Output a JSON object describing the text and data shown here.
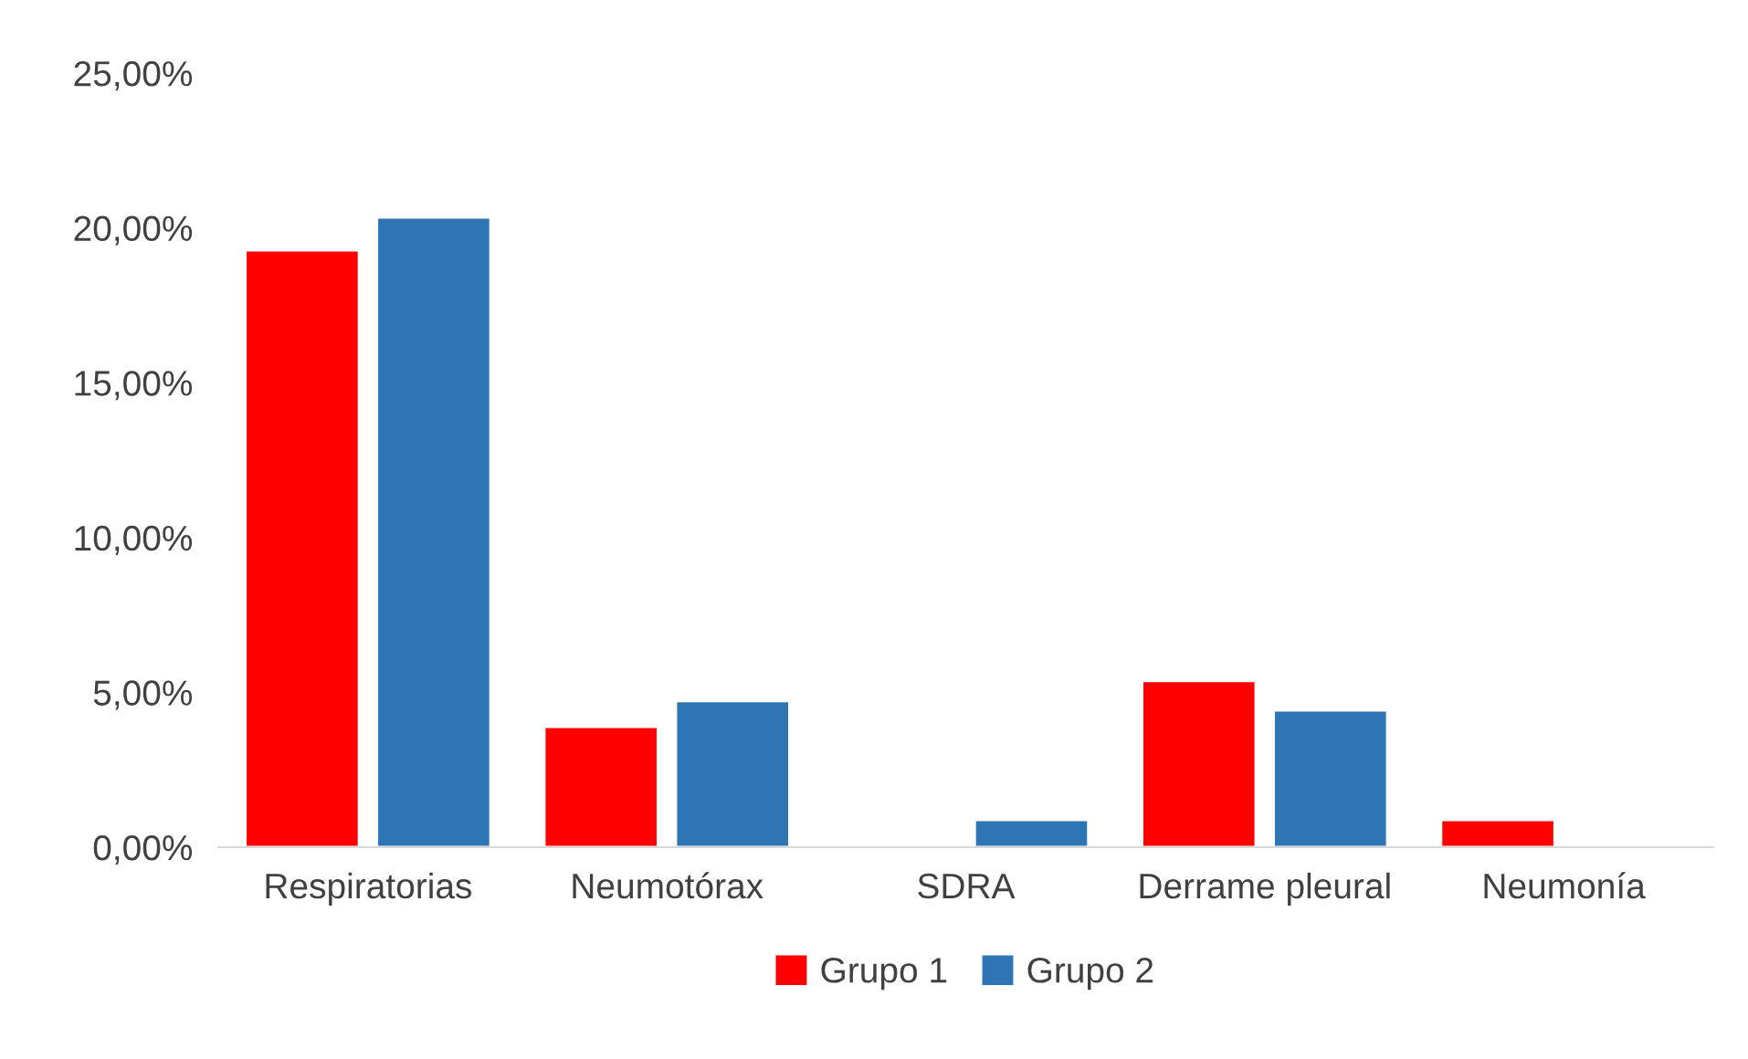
{
  "chart_data": {
    "type": "bar",
    "categories": [
      "Respiratorias",
      "Neumotórax",
      "SDRA",
      "Derrame pleural",
      "Neumonía"
    ],
    "series": [
      {
        "name": "Grupo 1",
        "color": "#ff0000",
        "values": [
          19.28,
          3.89,
          null,
          5.37,
          0.88
        ]
      },
      {
        "name": "Grupo 2",
        "color": "#2e75b6",
        "values": [
          20.34,
          4.72,
          0.88,
          4.42,
          null
        ]
      }
    ],
    "ylim": [
      0,
      25
    ],
    "yticks": [
      {
        "value": 0,
        "label": "0,00%"
      },
      {
        "value": 5,
        "label": "5,00%"
      },
      {
        "value": 10,
        "label": "10,00%"
      },
      {
        "value": 15,
        "label": "15,00%"
      },
      {
        "value": 20,
        "label": "20,00%"
      },
      {
        "value": 25,
        "label": "25,00%"
      }
    ],
    "grid": false,
    "legend": "bottom"
  }
}
